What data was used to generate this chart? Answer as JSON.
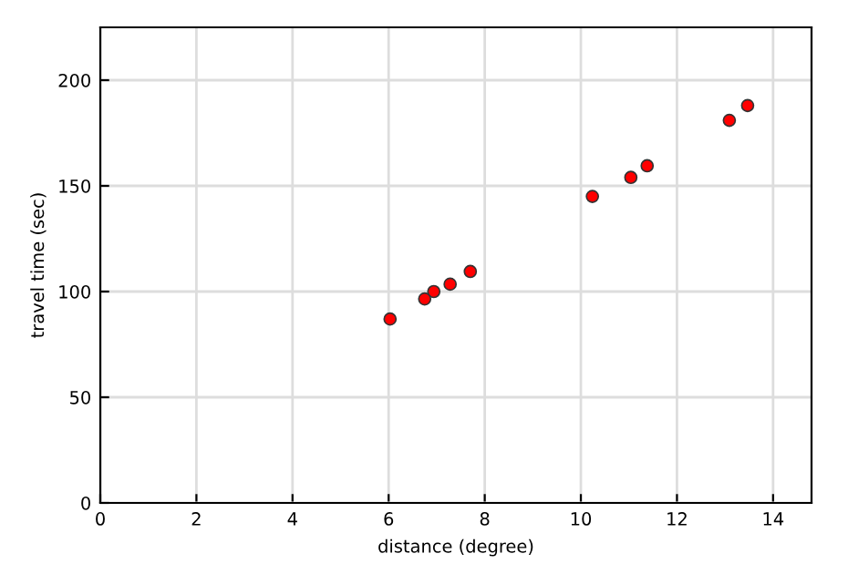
{
  "chart_data": {
    "type": "scatter",
    "xlabel": "distance (degree)",
    "ylabel": "travel time (sec)",
    "x": [
      6.03,
      6.75,
      6.94,
      7.28,
      7.7,
      10.24,
      11.04,
      11.38,
      13.09,
      13.47
    ],
    "values": [
      87,
      96.5,
      100,
      103.5,
      109.5,
      145,
      154,
      159.5,
      181,
      188
    ],
    "color": "#ff0000",
    "marker": "circle",
    "grid": true,
    "xlim": [
      0,
      14.8
    ],
    "xticks": [
      0,
      2,
      4,
      6,
      8,
      10,
      12,
      14
    ],
    "ylim": [
      0,
      225
    ],
    "yticks": [
      0,
      50,
      100,
      150,
      200
    ]
  }
}
